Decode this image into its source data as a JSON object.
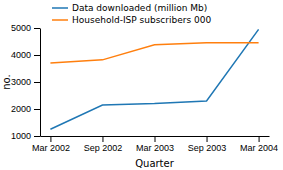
{
  "chart_data": {
    "type": "line",
    "categories": [
      "Mar 2002",
      "Sep 2002",
      "Mar 2003",
      "Sep 2003",
      "Mar 2004"
    ],
    "series": [
      {
        "name": "Data downloaded (million Mb)",
        "values": [
          1250,
          2150,
          2200,
          2300,
          4950
        ]
      },
      {
        "name": "Household-ISP subscribers 000",
        "values": [
          3700,
          3820,
          4380,
          4450,
          4450
        ]
      }
    ],
    "x_label": "Quarter",
    "y_label": "no.",
    "ylim": [
      1000,
      5000
    ],
    "yticks": [
      1000,
      2000,
      3000,
      4000,
      5000
    ],
    "grid": false,
    "legend": "top"
  }
}
